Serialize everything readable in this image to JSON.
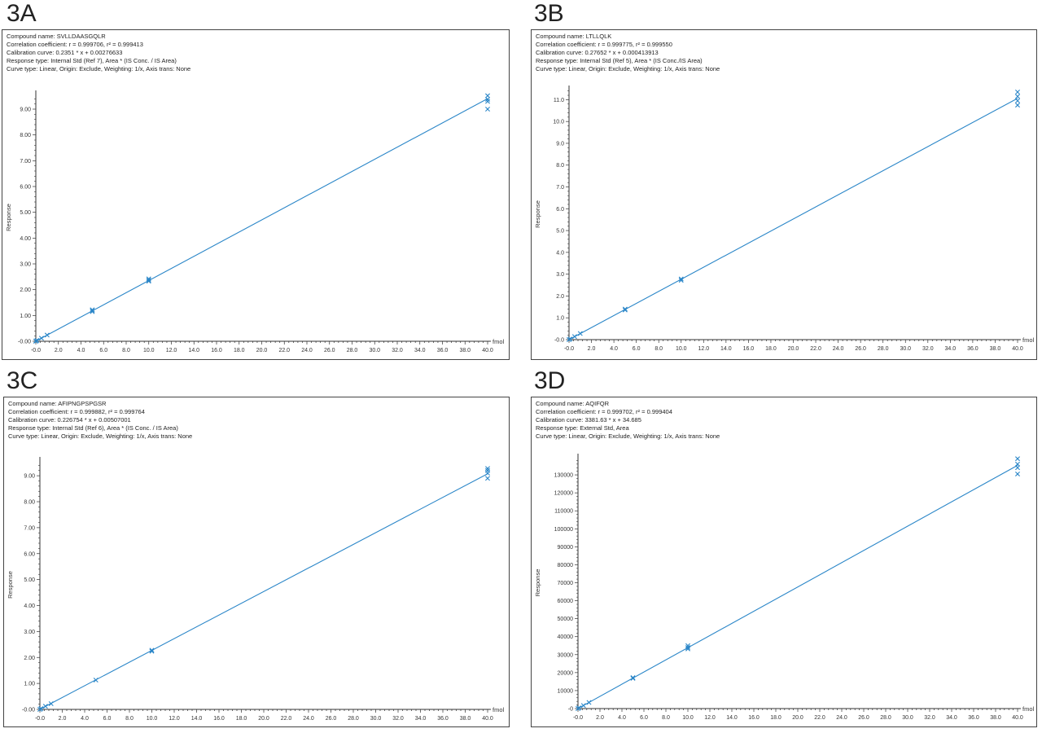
{
  "colors": {
    "series": "#2a86c8",
    "axis": "#333333",
    "frame": "#444444"
  },
  "panels": [
    {
      "label": "3A",
      "info": {
        "compound": "Compound name: SVLLDAASGQLR",
        "correlation": "Correlation coefficient: r = 0.999706, r² = 0.999413",
        "calibration": "Calibration curve: 0.2351 * x + 0.00276633",
        "response": "Response type: Internal Std (Ref 7), Area * (IS Conc. / IS Area)",
        "curve": "Curve type: Linear, Origin: Exclude, Weighting: 1/x, Axis trans: None"
      }
    },
    {
      "label": "3B",
      "info": {
        "compound": "Compound name: LTLLQLK",
        "correlation": "Correlation coefficient: r = 0.999775, r² = 0.999550",
        "calibration": "Calibration curve: 0.27652 * x + 0.000413913",
        "response": "Response type: Internal Std (Ref 5), Area * (IS Conc./IS Area)",
        "curve": "Curve type: Linear, Origin: Exclude, Weighting: 1/x, Axis trans: None"
      }
    },
    {
      "label": "3C",
      "info": {
        "compound": "Compound name: AFIPNGPSPGSR",
        "correlation": "Correlation coefficient: r = 0.999882, r² = 0.999764",
        "calibration": "Calibration curve: 0.226754 * x + 0.00507001",
        "response": "Response type: Internal Std (Ref 6), Area * (IS Conc. / IS Area)",
        "curve": "Curve type: Linear, Origin: Exclude, Weighting: 1/x, Axis trans: None"
      }
    },
    {
      "label": "3D",
      "info": {
        "compound": "Compound name: AQIFQR",
        "correlation": "Correlation coefficient: r = 0.999702, r² = 0.999404",
        "calibration": "Calibration curve: 3381.63 * x + 34.685",
        "response": "Response type: External Std, Area",
        "curve": "Curve type: Linear, Origin: Exclude, Weighting: 1/x, Axis trans: None"
      }
    }
  ],
  "chart_data": [
    {
      "type": "scatter",
      "panel": "3A",
      "xlabel": "fmol",
      "ylabel": "Response",
      "xlim": [
        0,
        40
      ],
      "ylim": [
        0,
        9.6
      ],
      "xticks": [
        "-0.0",
        "2.0",
        "4.0",
        "6.0",
        "8.0",
        "10.0",
        "12.0",
        "14.0",
        "16.0",
        "18.0",
        "20.0",
        "22.0",
        "24.0",
        "26.0",
        "28.0",
        "30.0",
        "32.0",
        "34.0",
        "36.0",
        "38.0",
        "40.0"
      ],
      "yticks": [
        "-0.00",
        "1.00",
        "2.00",
        "3.00",
        "4.00",
        "5.00",
        "6.00",
        "7.00",
        "8.00",
        "9.00"
      ],
      "fit": {
        "slope": 0.2351,
        "intercept": 0.00276633,
        "x_range": [
          0,
          40
        ]
      },
      "points": [
        {
          "x": 0.0,
          "y": 0.0
        },
        {
          "x": 0.0,
          "y": 0.01
        },
        {
          "x": 0.1,
          "y": 0.03
        },
        {
          "x": 0.5,
          "y": 0.12
        },
        {
          "x": 1.0,
          "y": 0.24
        },
        {
          "x": 5.0,
          "y": 1.15
        },
        {
          "x": 5.0,
          "y": 1.2
        },
        {
          "x": 5.0,
          "y": 1.22
        },
        {
          "x": 10.0,
          "y": 2.33
        },
        {
          "x": 10.0,
          "y": 2.37
        },
        {
          "x": 10.0,
          "y": 2.42
        },
        {
          "x": 40.0,
          "y": 9.0
        },
        {
          "x": 40.0,
          "y": 9.3
        },
        {
          "x": 40.0,
          "y": 9.38
        },
        {
          "x": 40.0,
          "y": 9.52
        }
      ]
    },
    {
      "type": "scatter",
      "panel": "3B",
      "xlabel": "fmol",
      "ylabel": "Response",
      "xlim": [
        0,
        40
      ],
      "ylim": [
        0,
        11.5
      ],
      "xticks": [
        "-0.0",
        "2.0",
        "4.0",
        "6.0",
        "8.0",
        "10.0",
        "12.0",
        "14.0",
        "16.0",
        "18.0",
        "20.0",
        "22.0",
        "24.0",
        "26.0",
        "28.0",
        "30.0",
        "32.0",
        "34.0",
        "36.0",
        "38.0",
        "40.0"
      ],
      "yticks": [
        "-0.0",
        "1.0",
        "2.0",
        "3.0",
        "4.0",
        "5.0",
        "6.0",
        "7.0",
        "8.0",
        "9.0",
        "10.0",
        "11.0"
      ],
      "fit": {
        "slope": 0.27652,
        "intercept": 0.000413913,
        "x_range": [
          0,
          40
        ]
      },
      "points": [
        {
          "x": 0.0,
          "y": 0.0
        },
        {
          "x": 0.1,
          "y": 0.03
        },
        {
          "x": 0.5,
          "y": 0.14
        },
        {
          "x": 1.0,
          "y": 0.28
        },
        {
          "x": 5.0,
          "y": 1.36
        },
        {
          "x": 5.0,
          "y": 1.4
        },
        {
          "x": 10.0,
          "y": 2.72
        },
        {
          "x": 10.0,
          "y": 2.78
        },
        {
          "x": 40.0,
          "y": 10.75
        },
        {
          "x": 40.0,
          "y": 10.95
        },
        {
          "x": 40.0,
          "y": 11.15
        },
        {
          "x": 40.0,
          "y": 11.35
        }
      ]
    },
    {
      "type": "scatter",
      "panel": "3C",
      "xlabel": "fmol",
      "ylabel": "Response",
      "xlim": [
        0,
        40
      ],
      "ylim": [
        0,
        9.6
      ],
      "xticks": [
        "-0.0",
        "2.0",
        "4.0",
        "6.0",
        "8.0",
        "10.0",
        "12.0",
        "14.0",
        "16.0",
        "18.0",
        "20.0",
        "22.0",
        "24.0",
        "26.0",
        "28.0",
        "30.0",
        "32.0",
        "34.0",
        "36.0",
        "38.0",
        "40.0"
      ],
      "yticks": [
        "-0.00",
        "1.00",
        "2.00",
        "3.00",
        "4.00",
        "5.00",
        "6.00",
        "7.00",
        "8.00",
        "9.00"
      ],
      "fit": {
        "slope": 0.226754,
        "intercept": 0.00507001,
        "x_range": [
          0,
          40
        ]
      },
      "points": [
        {
          "x": 0.0,
          "y": 0.0
        },
        {
          "x": 0.1,
          "y": 0.03
        },
        {
          "x": 0.5,
          "y": 0.12
        },
        {
          "x": 1.0,
          "y": 0.22
        },
        {
          "x": 5.0,
          "y": 1.13
        },
        {
          "x": 10.0,
          "y": 2.24
        },
        {
          "x": 10.0,
          "y": 2.28
        },
        {
          "x": 40.0,
          "y": 8.9
        },
        {
          "x": 40.0,
          "y": 9.1
        },
        {
          "x": 40.0,
          "y": 9.2
        },
        {
          "x": 40.0,
          "y": 9.28
        }
      ]
    },
    {
      "type": "scatter",
      "panel": "3D",
      "xlabel": "fmol",
      "ylabel": "Response",
      "xlim": [
        0,
        40
      ],
      "ylim": [
        0,
        140000
      ],
      "xticks": [
        "-0.0",
        "2.0",
        "4.0",
        "6.0",
        "8.0",
        "10.0",
        "12.0",
        "14.0",
        "16.0",
        "18.0",
        "20.0",
        "22.0",
        "24.0",
        "26.0",
        "28.0",
        "30.0",
        "32.0",
        "34.0",
        "36.0",
        "38.0",
        "40.0"
      ],
      "yticks": [
        "-0",
        "10000",
        "20000",
        "30000",
        "40000",
        "50000",
        "60000",
        "70000",
        "80000",
        "90000",
        "100000",
        "110000",
        "120000",
        "130000"
      ],
      "fit": {
        "slope": 3381.63,
        "intercept": 34.685,
        "x_range": [
          0,
          40
        ]
      },
      "points": [
        {
          "x": 0.0,
          "y": 0
        },
        {
          "x": 0.1,
          "y": 400
        },
        {
          "x": 0.5,
          "y": 1700
        },
        {
          "x": 1.0,
          "y": 3400
        },
        {
          "x": 5.0,
          "y": 16800
        },
        {
          "x": 5.0,
          "y": 17200
        },
        {
          "x": 10.0,
          "y": 33200
        },
        {
          "x": 10.0,
          "y": 34000
        },
        {
          "x": 10.0,
          "y": 35000
        },
        {
          "x": 40.0,
          "y": 130500
        },
        {
          "x": 40.0,
          "y": 134000
        },
        {
          "x": 40.0,
          "y": 136000
        },
        {
          "x": 40.0,
          "y": 139000
        }
      ]
    }
  ]
}
